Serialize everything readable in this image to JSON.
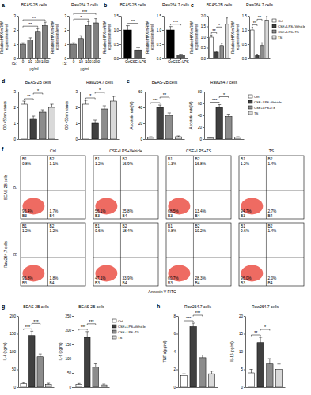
{
  "chart_data": [
    {
      "type": "bar",
      "panel": "a",
      "title": "BEAS-2B cells",
      "ylabel": "Relative HPX mRNA expression level",
      "categories_title": "TS:",
      "xlabel": "μg/ml",
      "categories": [
        "0",
        "10",
        "100",
        "1000"
      ],
      "values": [
        1.0,
        1.3,
        1.9,
        2.3
      ],
      "errors": [
        0.1,
        0.15,
        0.2,
        0.25
      ],
      "color": "#7f7f7f",
      "ylim": [
        0,
        3
      ],
      "yticks": [
        0,
        1,
        2,
        3
      ],
      "annotations": [
        {
          "text": "**",
          "from": 0,
          "to": 2
        },
        {
          "text": "**",
          "from": 0,
          "to": 3
        }
      ]
    },
    {
      "type": "bar",
      "title": "Raw264.7 cells",
      "ylabel": "Relative HPX mRNA expression level",
      "categories_title": "TS:",
      "xlabel": "μg/ml",
      "categories": [
        "0",
        "10",
        "100",
        "1000"
      ],
      "values": [
        1.0,
        1.4,
        2.3,
        2.5
      ],
      "errors": [
        0.1,
        0.2,
        0.3,
        0.3
      ],
      "color": "#7f7f7f",
      "ylim": [
        0,
        3
      ],
      "yticks": [
        0,
        1,
        2,
        3
      ],
      "annotations": [
        {
          "text": "*",
          "from": 0,
          "to": 2
        },
        {
          "text": "***",
          "from": 0,
          "to": 3
        }
      ]
    },
    {
      "type": "bar",
      "panel": "b",
      "title": "BEAS-2B cells",
      "ylabel": "Relative HPX mRNA expression level",
      "categories": [
        "Ctrl",
        "CSE+LPS"
      ],
      "values": [
        1.0,
        0.3
      ],
      "errors": [
        0.15,
        0.08
      ],
      "colors": [
        "#000000",
        "#595959"
      ],
      "ylim": [
        0,
        1.5
      ],
      "yticks": [
        {
          "value": 0,
          "label": "0.0"
        },
        0.5,
        {
          "value": 1,
          "label": "1.0"
        },
        1.5
      ],
      "annotations": [
        {
          "text": "**",
          "from": 0,
          "to": 1
        }
      ]
    },
    {
      "type": "bar",
      "title": "Raw264.7 cells",
      "ylabel": "Relative HPX mRNA expression level",
      "categories": [
        "Ctrl",
        "CSE+LPS"
      ],
      "values": [
        1.0,
        0.12
      ],
      "errors": [
        0.12,
        0.03
      ],
      "colors": [
        "#000000",
        "#595959"
      ],
      "ylim": [
        0,
        1.5
      ],
      "yticks": [
        {
          "value": 0,
          "label": "0.0"
        },
        0.5,
        {
          "value": 1,
          "label": "1.0"
        },
        1.5
      ],
      "annotations": [
        {
          "text": "***",
          "from": 0,
          "to": 1
        }
      ]
    },
    {
      "type": "bar",
      "panel": "c",
      "title": "BEAS-2B cells",
      "ylabel": "Relative HPX mRNA expression level",
      "categories": [
        "Ctrl",
        "CSE+LPS+Vehicle",
        "CSE+LPS+TS",
        "TS"
      ],
      "values": [
        1.0,
        0.3,
        0.6,
        1.6
      ],
      "errors": [
        0.1,
        0.05,
        0.1,
        0.3
      ],
      "colors": [
        "#ffffff",
        "#404040",
        "#8c8c8c",
        "#d9d9d9"
      ],
      "tick_labels": "y",
      "ylim": [
        0,
        2
      ],
      "yticks": [
        {
          "value": 0,
          "label": "0.0"
        },
        0.5,
        {
          "value": 1,
          "label": "1.0"
        },
        1.5,
        {
          "value": 2,
          "label": "2.0"
        }
      ],
      "annotations": [
        {
          "text": "**",
          "from": 0,
          "to": 1
        },
        {
          "text": "*",
          "from": 1,
          "to": 2
        }
      ]
    },
    {
      "type": "bar",
      "title": "Raw264.7 cells",
      "ylabel": "Relative HPX mRNA expression level",
      "categories": [
        "Ctrl",
        "CSE+LPS+Vehicle",
        "CSE+LPS+TS",
        "TS"
      ],
      "values": [
        1.0,
        0.1,
        0.45,
        1.35
      ],
      "errors": [
        0.1,
        0.05,
        0.1,
        0.15
      ],
      "colors": [
        "#ffffff",
        "#404040",
        "#8c8c8c",
        "#d9d9d9"
      ],
      "tick_labels": "y",
      "legend": "right",
      "ylim": [
        0,
        1.5
      ],
      "yticks": [
        {
          "value": 0,
          "label": "0.0"
        },
        0.5,
        {
          "value": 1,
          "label": "1.0"
        },
        1.5
      ],
      "annotations": [
        {
          "text": "**",
          "from": 0,
          "to": 1
        },
        {
          "text": "**",
          "from": 1,
          "to": 2
        }
      ]
    },
    {
      "type": "bar",
      "panel": "d",
      "title": "BEAS-2B cells",
      "ylabel": "OD 450nm values",
      "categories": [
        "Ctrl",
        "CSE+LPS+Vehicle",
        "CSE+LPS+TS",
        "TS"
      ],
      "values": [
        2.2,
        1.3,
        1.7,
        2.0
      ],
      "errors": [
        0.2,
        0.15,
        0.15,
        0.2
      ],
      "colors": [
        "#ffffff",
        "#404040",
        "#8c8c8c",
        "#d9d9d9"
      ],
      "tick_labels": "y",
      "ylim": [
        0,
        3
      ],
      "yticks": [
        0,
        1,
        2,
        3
      ],
      "annotations": [
        {
          "text": "**",
          "from": 0,
          "to": 1
        },
        {
          "text": "*",
          "from": 1,
          "to": 2
        }
      ]
    },
    {
      "type": "bar",
      "title": "Raw264.7 cells",
      "ylabel": "OD 450nm values",
      "categories": [
        "Ctrl",
        "CSE+LPS+Vehicle",
        "CSE+LPS+TS",
        "TS"
      ],
      "values": [
        2.2,
        1.0,
        1.9,
        2.4
      ],
      "errors": [
        0.25,
        0.2,
        0.2,
        0.3
      ],
      "colors": [
        "#ffffff",
        "#404040",
        "#8c8c8c",
        "#d9d9d9"
      ],
      "tick_labels": "y",
      "ylim": [
        0,
        3
      ],
      "yticks": [
        0,
        1,
        2,
        3
      ],
      "annotations": [
        {
          "text": "*",
          "from": 0,
          "to": 1
        },
        {
          "text": "*",
          "from": 1,
          "to": 2
        }
      ]
    },
    {
      "type": "bar",
      "panel": "e",
      "title": "BEAS-2B cells",
      "ylabel": "Apoptotic rate(%)",
      "categories": [
        "Ctrl",
        "CSE+LPS+Vehicle",
        "CSE+LPS+TS",
        "TS"
      ],
      "values": [
        2,
        40,
        30,
        3
      ],
      "errors": [
        1,
        3,
        3,
        1
      ],
      "colors": [
        "#ffffff",
        "#404040",
        "#8c8c8c",
        "#d9d9d9"
      ],
      "tick_labels": "y",
      "ylim": [
        0,
        60
      ],
      "yticks": [
        0,
        20,
        40,
        60
      ],
      "annotations": [
        {
          "text": "***",
          "from": 0,
          "to": 1
        },
        {
          "text": "**",
          "from": 1,
          "to": 2
        }
      ]
    },
    {
      "type": "bar",
      "title": "Raw264.7 cells",
      "ylabel": "Apoptotic rate(%)",
      "categories": [
        "Ctrl",
        "CSE+LPS+Vehicle",
        "CSE+LPS+TS",
        "TS"
      ],
      "values": [
        2,
        53,
        38,
        3
      ],
      "errors": [
        1,
        5,
        4,
        1
      ],
      "colors": [
        "#ffffff",
        "#404040",
        "#8c8c8c",
        "#d9d9d9"
      ],
      "tick_labels": "y",
      "legend": "right",
      "ylim": [
        0,
        80
      ],
      "yticks": [
        0,
        20,
        40,
        60,
        80
      ],
      "annotations": [
        {
          "text": "***",
          "from": 0,
          "to": 1
        },
        {
          "text": "*",
          "from": 1,
          "to": 2
        }
      ]
    },
    {
      "type": "quadrant",
      "panel": "f",
      "columns": [
        "Ctrl",
        "CSE+LPS+Vehicle",
        "CSE+LPS+TS",
        "TS"
      ],
      "rows": [
        "BEAS-2B cells",
        "Raw264.7 cells"
      ],
      "x_label": "Annexin V-FITC",
      "y_label": "PI",
      "quadrants": [
        "B1",
        "B2",
        "B3",
        "B4"
      ],
      "values": [
        [
          [
            0.8,
            1.1,
            96.4,
            1.7
          ],
          [
            1.2,
            16.9,
            56.1,
            25.8
          ],
          [
            1.3,
            16.8,
            68.5,
            13.4
          ],
          [
            1.2,
            1.4,
            94.7,
            2.7
          ]
        ],
        [
          [
            1.2,
            1.2,
            95.8,
            1.8
          ],
          [
            0.6,
            18.4,
            47.1,
            33.9
          ],
          [
            0.8,
            10.2,
            60.7,
            28.3
          ],
          [
            0.6,
            1.4,
            96.0,
            2.0
          ]
        ]
      ],
      "value_labels": [
        [
          [
            "0.8%",
            "1.1%",
            "96.4%",
            "1.7%"
          ],
          [
            "1.2%",
            "16.9%",
            "56.1%",
            "25.8%"
          ],
          [
            "1.3%",
            "16.8%",
            "68.5%",
            "13.4%"
          ],
          [
            "1.2%",
            "1.4%",
            "94.7%",
            "2.7%"
          ]
        ],
        [
          [
            "1.2%",
            "1.2%",
            "95.8%",
            "1.8%"
          ],
          [
            "0.6%",
            "18.4%",
            "47.1%",
            "33.9%"
          ],
          [
            "0.8%",
            "10.2%",
            "60.7%",
            "28.3%"
          ],
          [
            "0.6%",
            "1.4%",
            "96.0%",
            "2.0%"
          ]
        ]
      ]
    },
    {
      "type": "bar",
      "panel": "g",
      "title": "BEAS-2B cells",
      "ylabel": "IL-6 (pg/ml)",
      "categories": [
        "Ctrl",
        "CSE+LPS+Vehicle",
        "CSE+LPS+TS",
        "TS"
      ],
      "values": [
        10,
        145,
        85,
        8
      ],
      "errors": [
        3,
        12,
        8,
        3
      ],
      "colors": [
        "#ffffff",
        "#404040",
        "#8c8c8c",
        "#d9d9d9"
      ],
      "tick_labels": "y",
      "ylim": [
        0,
        200
      ],
      "yticks": [
        0,
        50,
        100,
        150,
        200
      ],
      "annotations": [
        {
          "text": "***",
          "from": 0,
          "to": 1
        },
        {
          "text": "***",
          "from": 1,
          "to": 2
        }
      ]
    },
    {
      "type": "bar",
      "title": "BEAS-2B cells",
      "ylabel": "IL-8 (pg/ml)",
      "categories": [
        "Ctrl",
        "CSE+LPS+Vehicle",
        "CSE+LPS+TS",
        "TS"
      ],
      "values": [
        10,
        175,
        70,
        8
      ],
      "errors": [
        3,
        20,
        12,
        3
      ],
      "colors": [
        "#ffffff",
        "#404040",
        "#8c8c8c",
        "#d9d9d9"
      ],
      "tick_labels": "y",
      "legend": "right",
      "ylim": [
        0,
        250
      ],
      "yticks": [
        0,
        50,
        100,
        150,
        200,
        250
      ],
      "annotations": [
        {
          "text": "***",
          "from": 0,
          "to": 1
        },
        {
          "text": "***",
          "from": 1,
          "to": 2
        }
      ]
    },
    {
      "type": "bar",
      "panel": "h",
      "title": "Raw264.7 cells",
      "ylabel": "TNF-α(pg/ml)",
      "categories": [
        "Ctrl",
        "CSE+LPS+Vehicle",
        "CSE+LPS+TS",
        "TS"
      ],
      "values": [
        1.3,
        6.8,
        3.3,
        1.5
      ],
      "errors": [
        0.2,
        0.4,
        0.3,
        0.3
      ],
      "colors": [
        "#ffffff",
        "#404040",
        "#8c8c8c",
        "#d9d9d9"
      ],
      "tick_labels": "y",
      "ylim": [
        0,
        8
      ],
      "yticks": [
        0,
        2,
        4,
        6,
        8
      ],
      "annotations": [
        {
          "text": "***",
          "from": 0,
          "to": 1
        },
        {
          "text": "***",
          "from": 1,
          "to": 2
        }
      ]
    },
    {
      "type": "bar",
      "title": "Raw264.7 cells",
      "ylabel": "IL-1β (pg/ml)",
      "categories": [
        "Ctrl",
        "CSE+LPS+Vehicle",
        "CSE+LPS+TS",
        "TS"
      ],
      "values": [
        4,
        12.5,
        6.5,
        5
      ],
      "errors": [
        1,
        1.5,
        1.5,
        1.5
      ],
      "colors": [
        "#ffffff",
        "#404040",
        "#8c8c8c",
        "#d9d9d9"
      ],
      "tick_labels": "y",
      "ylim": [
        0,
        20
      ],
      "yticks": [
        0,
        5,
        10,
        15,
        20
      ],
      "annotations": [
        {
          "text": "**",
          "from": 0,
          "to": 1
        },
        {
          "text": "*",
          "from": 1,
          "to": 2
        }
      ]
    }
  ]
}
